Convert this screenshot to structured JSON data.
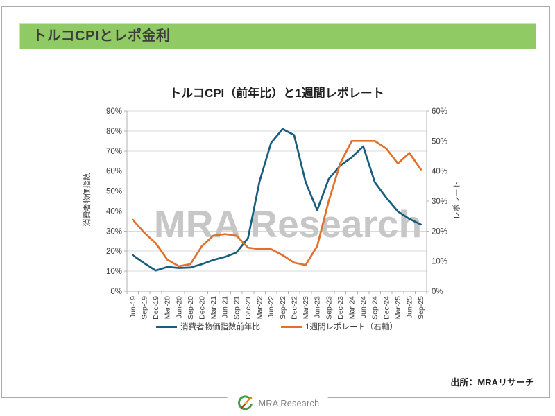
{
  "slide": {
    "title": "トルコCPIとレポ金利"
  },
  "chart": {
    "title": "トルコCPI（前年比）と1週間レポレート",
    "left_axis_title": "消費者物価指数",
    "right_axis_title": "レポレート",
    "watermark": "MRA Research",
    "legend": [
      {
        "label": "消費者物価指数前年比",
        "color": "#175D7E"
      },
      {
        "label": "1週間レポレート（右軸）",
        "color": "#E2702D"
      }
    ]
  },
  "chart_data": {
    "type": "line",
    "title": "トルコCPI（前年比）と1週間レポレート",
    "categories": [
      "Jun-19",
      "Sep-19",
      "Dec-19",
      "Mar-20",
      "Jun-20",
      "Sep-20",
      "Dec-20",
      "Mar-21",
      "Jun-21",
      "Sep-21",
      "Dec-21",
      "Mar-22",
      "Jun-22",
      "Sep-22",
      "Dec-22",
      "Mar-23",
      "Jun-23",
      "Sep-23",
      "Dec-23",
      "Mar-24",
      "Jun-24",
      "Sep-24",
      "Dec-24",
      "Mar-25",
      "Jun-25",
      "Sep-25"
    ],
    "series": [
      {
        "name": "消費者物価指数前年比",
        "axis": "left",
        "color": "#175D7E",
        "values": [
          18.0,
          14.0,
          10.3,
          12.1,
          11.6,
          11.8,
          13.5,
          15.6,
          17.1,
          19.3,
          26.5,
          54.8,
          74.0,
          81.0,
          78.0,
          54.5,
          40.5,
          56.0,
          62.7,
          66.8,
          72.3,
          54.4,
          46.7,
          39.8,
          36.1,
          33.3
        ]
      },
      {
        "name": "1週間レポレート（右軸）",
        "axis": "right",
        "color": "#E2702D",
        "values": [
          23.8,
          19.5,
          16.0,
          10.5,
          8.3,
          9.0,
          15.0,
          18.5,
          19.0,
          18.5,
          14.5,
          14.0,
          14.0,
          12.0,
          9.5,
          8.7,
          15.0,
          30.0,
          42.5,
          50.0,
          50.0,
          50.0,
          47.5,
          42.5,
          46.0,
          40.5
        ]
      }
    ],
    "left_axis": {
      "title": "消費者物価指数",
      "min": 0,
      "max": 90,
      "step": 10,
      "format": "percent"
    },
    "right_axis": {
      "title": "レポレート",
      "min": 0,
      "max": 60,
      "step": 10,
      "format": "percent"
    },
    "grid": true,
    "legend_position": "bottom",
    "xlabel": "",
    "ylabel": "消費者物価指数"
  },
  "footer": {
    "source": "出所：MRAリサーチ",
    "logo_text": "MRA Research"
  },
  "colors": {
    "title_bar_bg": "#8FCA64",
    "gridline": "#D9D9D9",
    "axis_line": "#B0B0B0",
    "tick_label": "#404040",
    "watermark": "#C7C7C7"
  }
}
